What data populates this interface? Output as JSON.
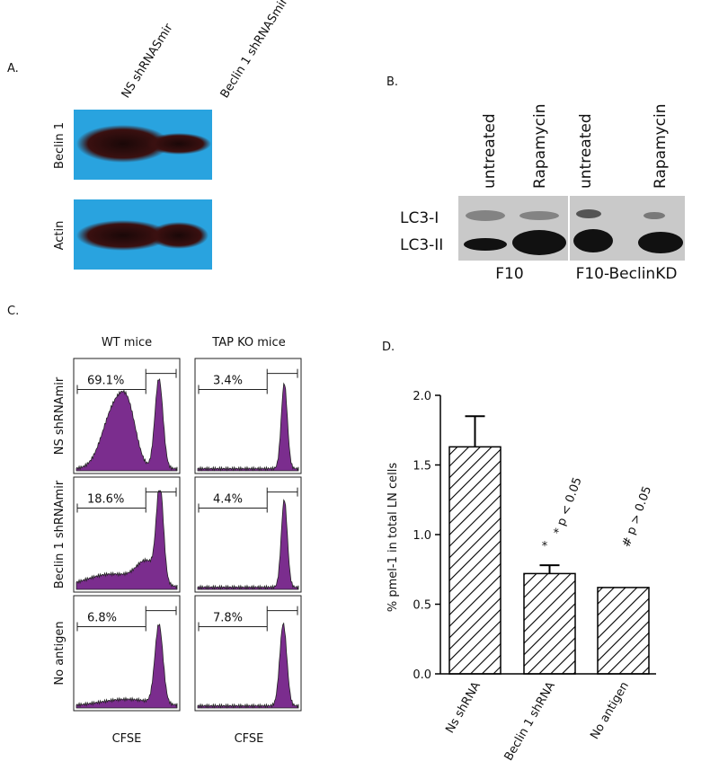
{
  "panel_a": {
    "label": "A.",
    "columns": [
      "NS shRNASmir",
      "Beclin 1 shRNASmir"
    ],
    "rows": [
      "Beclin 1",
      "Actin"
    ]
  },
  "panel_b": {
    "label": "B.",
    "columns": [
      "untreated",
      "Rapamycin",
      "untreated",
      "Rapamycin"
    ],
    "bands": [
      "LC3-I",
      "LC3-II"
    ],
    "groups": [
      "F10",
      "F10-BeclinKD"
    ]
  },
  "panel_c": {
    "label": "C.",
    "columns": [
      "WT mice",
      "TAP KO mice"
    ],
    "rows": [
      "NS shRNAmir",
      "Beclin 1 shRNAmir",
      "No antigen"
    ],
    "percentages": [
      [
        "69.1%",
        "3.4%"
      ],
      [
        "18.6%",
        "4.4%"
      ],
      [
        "6.8%",
        "7.8%"
      ]
    ],
    "x_labels": [
      "CFSE",
      "CFSE"
    ]
  },
  "chart_data": {
    "type": "bar",
    "label": "D.",
    "ylabel": "% pmel-1 in total LN cells",
    "categories": [
      "Ns shRNA",
      "Beclin 1 shRNA",
      "No antigen"
    ],
    "values": [
      1.63,
      0.72,
      0.62
    ],
    "errors": [
      0.22,
      0.06,
      null
    ],
    "ylim": [
      0,
      2.0
    ],
    "yticks": [
      {
        "value": 0,
        "label": "0.0"
      },
      {
        "value": 0.5,
        "label": "0.5"
      },
      {
        "value": 1,
        "label": "1.0"
      },
      {
        "value": 1.5,
        "label": "1.5"
      },
      {
        "value": 2,
        "label": "2.0"
      }
    ],
    "annotations": [
      "*",
      "* p < 0.05",
      "# p > 0.05"
    ],
    "color": "#000000"
  }
}
